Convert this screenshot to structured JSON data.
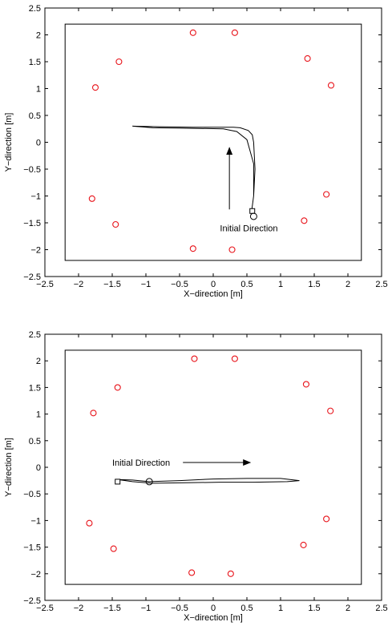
{
  "chart_data": [
    {
      "type": "scatter",
      "xlabel": "X−direction [m]",
      "ylabel": "Y−direction [m]",
      "xlim": [
        -2.5,
        2.5
      ],
      "ylim": [
        -2.5,
        2.5
      ],
      "xticks": [
        "−2.5",
        "−2",
        "−1.5",
        "−1",
        "−0.5",
        "0",
        "0.5",
        "1",
        "1.5",
        "2",
        "2.5"
      ],
      "yticks": [
        "2.5",
        "2",
        "1.5",
        "1",
        "0.5",
        "0",
        "−0.5",
        "−1",
        "−1.5",
        "−2",
        "−2.5"
      ],
      "tick_values": [
        -2.5,
        -2,
        -1.5,
        -1,
        -0.5,
        0,
        0.5,
        1,
        1.5,
        2,
        2.5
      ],
      "boundary": {
        "x": [
          -2.2,
          2.2
        ],
        "y": [
          -2.2,
          2.2
        ]
      },
      "landmarks": {
        "color": "#e8141b",
        "x": [
          -0.3,
          0.32,
          1.4,
          1.75,
          -1.4,
          -1.75,
          -1.8,
          -1.45,
          -0.3,
          0.28,
          1.35,
          1.68
        ],
        "y": [
          2.04,
          2.04,
          1.56,
          1.06,
          1.5,
          1.02,
          -1.05,
          -1.53,
          -1.98,
          -2.0,
          -1.46,
          -0.97
        ]
      },
      "paths": [
        {
          "x": [
            0.57,
            0.6,
            0.62,
            0.6,
            0.58,
            0.52,
            0.4,
            0.3,
            0.1,
            -0.3,
            -0.8,
            -1.2,
            -0.9,
            -0.3,
            0.15,
            0.35,
            0.5,
            0.6,
            0.6,
            0.57
          ],
          "y": [
            -1.28,
            -1.0,
            -0.5,
            0.0,
            0.14,
            0.22,
            0.27,
            0.28,
            0.28,
            0.28,
            0.29,
            0.3,
            0.27,
            0.26,
            0.25,
            0.2,
            0.05,
            -0.4,
            -1.0,
            -1.28
          ]
        }
      ],
      "start_marker": {
        "shape": "square",
        "x": 0.58,
        "y": -1.28
      },
      "end_marker": {
        "shape": "circle",
        "x": 0.6,
        "y": -1.38
      },
      "direction_arrow": {
        "from": [
          0.24,
          -1.25
        ],
        "to": [
          0.24,
          -0.1
        ]
      },
      "annotation": {
        "text": "Initial Direction",
        "x": 0.1,
        "y": -1.6
      }
    },
    {
      "type": "scatter",
      "xlabel": "X−direction [m]",
      "ylabel": "Y−direction [m]",
      "xlim": [
        -2.5,
        2.5
      ],
      "ylim": [
        -2.5,
        2.5
      ],
      "xticks": [
        "−2.5",
        "−2",
        "−1.5",
        "−1",
        "−0.5",
        "0",
        "0.5",
        "1",
        "1.5",
        "2",
        "2.5"
      ],
      "yticks": [
        "2.5",
        "2",
        "1.5",
        "1",
        "0.5",
        "0",
        "−0.5",
        "−1",
        "−1.5",
        "−2",
        "−2.5"
      ],
      "tick_values": [
        -2.5,
        -2,
        -1.5,
        -1,
        -0.5,
        0,
        0.5,
        1,
        1.5,
        2,
        2.5
      ],
      "boundary": {
        "x": [
          -2.2,
          2.2
        ],
        "y": [
          -2.2,
          2.2
        ]
      },
      "landmarks": {
        "color": "#e8141b",
        "x": [
          -0.28,
          0.32,
          1.38,
          1.74,
          -1.42,
          -1.78,
          -1.84,
          -1.48,
          -0.32,
          0.26,
          1.34,
          1.68
        ],
        "y": [
          2.04,
          2.04,
          1.56,
          1.06,
          1.5,
          1.02,
          -1.05,
          -1.53,
          -1.98,
          -2.0,
          -1.46,
          -0.97
        ]
      },
      "paths": [
        {
          "x": [
            -1.42,
            -1.2,
            -0.95,
            -0.5,
            0.0,
            0.5,
            1.0,
            1.28,
            1.1,
            0.6,
            0.1,
            -0.4,
            -0.9,
            -1.2,
            -1.42
          ],
          "y": [
            -0.23,
            -0.24,
            -0.27,
            -0.25,
            -0.22,
            -0.21,
            -0.21,
            -0.25,
            -0.27,
            -0.28,
            -0.28,
            -0.29,
            -0.3,
            -0.27,
            -0.23
          ]
        }
      ],
      "start_marker": {
        "shape": "square",
        "x": -1.42,
        "y": -0.27
      },
      "end_marker": {
        "shape": "circle",
        "x": -0.95,
        "y": -0.27
      },
      "direction_arrow": {
        "from": [
          -0.45,
          0.09
        ],
        "to": [
          0.55,
          0.09
        ]
      },
      "annotation": {
        "text": "Initial Direction",
        "x": -1.5,
        "y": 0.09
      }
    }
  ]
}
